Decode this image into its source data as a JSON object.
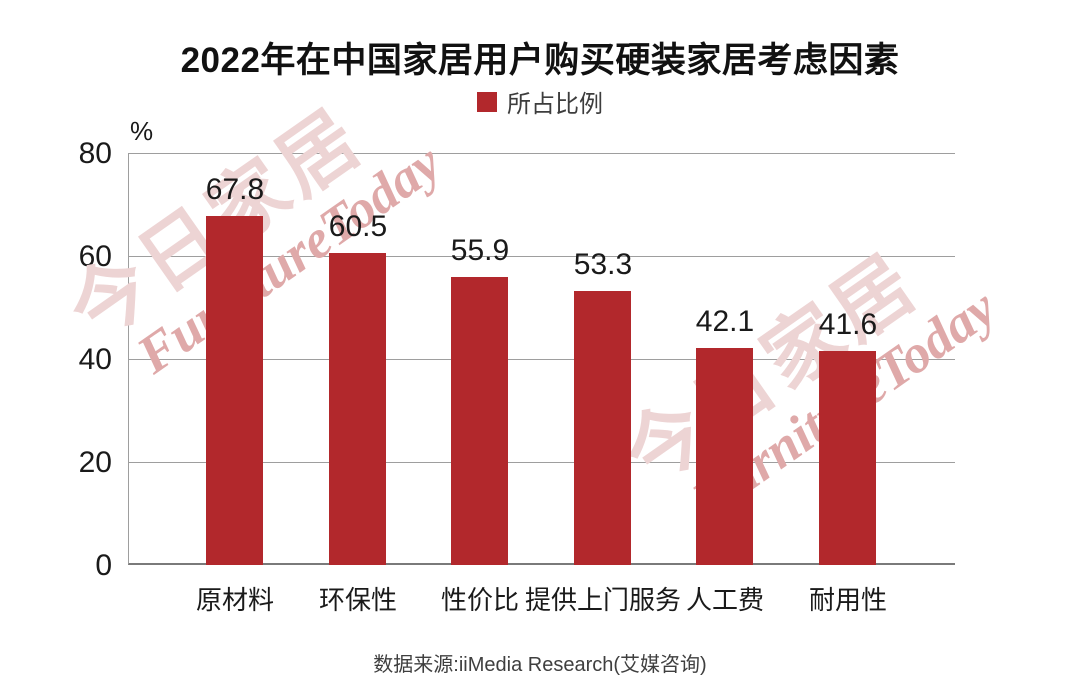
{
  "header": {
    "title": "2022年在中国家居用户购买硬装家居考虑因素",
    "legend_label": "所占比例"
  },
  "y_axis": {
    "unit": "%",
    "ticks": [
      "80",
      "60",
      "40",
      "20",
      "0"
    ]
  },
  "footer": {
    "source": "数据来源:iiMedia Research(艾媒咨询)"
  },
  "watermark": {
    "line1": "今日家居",
    "line2": "FurnitureToday"
  },
  "colors": {
    "bar": "#B2282C",
    "grid": "#9E9E9E",
    "axis": "#7A7A7A",
    "watermark_cjk": "#EDD4D4",
    "watermark_en": "#DFA9A9"
  },
  "chart_data": {
    "type": "bar",
    "title": "2022年在中国家居用户购买硬装家居考虑因素",
    "series_name": "所占比例",
    "categories": [
      "原材料",
      "环保性",
      "性价比",
      "提供上门服务",
      "人工费",
      "耐用性"
    ],
    "values": [
      67.8,
      60.5,
      55.9,
      53.3,
      42.1,
      41.6
    ],
    "xlabel": "",
    "ylabel": "%",
    "ylim": [
      0,
      80
    ],
    "ytick_interval": 20,
    "grid": true,
    "legend_position": "top",
    "bar_color": "#B2282C",
    "value_labels_shown": true,
    "source": "数据来源:iiMedia Research(艾媒咨询)"
  }
}
